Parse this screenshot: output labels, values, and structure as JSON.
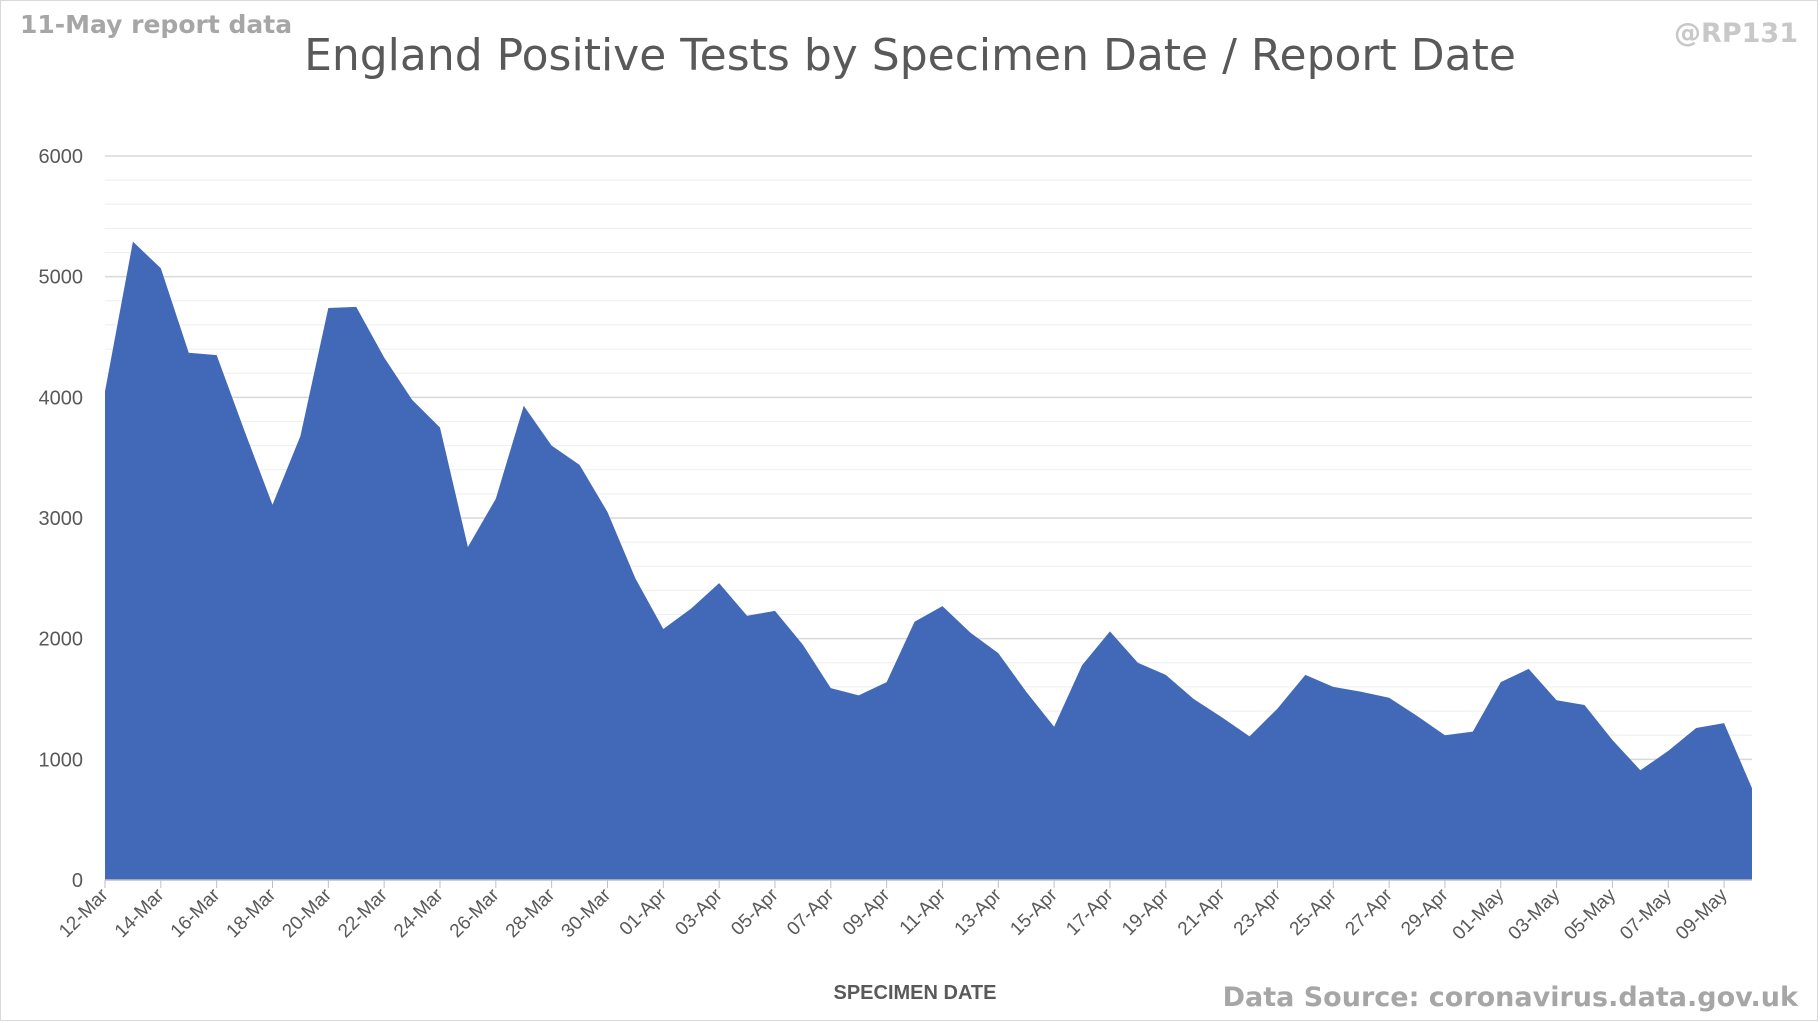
{
  "header": {
    "report_note": "11-May report data",
    "handle": "@RP131",
    "source": "Data Source: coronavirus.data.gov.uk"
  },
  "colors": {
    "area": "#4169b8",
    "major_grid": "#d9d9d9",
    "minor_grid": "#eeeeee"
  },
  "chart_data": {
    "type": "area",
    "title": "England Positive Tests by Specimen Date / Report Date",
    "xlabel": "SPECIMEN DATE",
    "ylabel": "",
    "ylim": [
      0,
      6000
    ],
    "yticks": [
      0,
      1000,
      2000,
      3000,
      4000,
      5000,
      6000
    ],
    "grid": "major and minor horizontal",
    "legend": "none",
    "x": [
      "12-Mar",
      "13-Mar",
      "14-Mar",
      "15-Mar",
      "16-Mar",
      "17-Mar",
      "18-Mar",
      "19-Mar",
      "20-Mar",
      "21-Mar",
      "22-Mar",
      "23-Mar",
      "24-Mar",
      "25-Mar",
      "26-Mar",
      "27-Mar",
      "28-Mar",
      "29-Mar",
      "30-Mar",
      "31-Mar",
      "01-Apr",
      "02-Apr",
      "03-Apr",
      "04-Apr",
      "05-Apr",
      "06-Apr",
      "07-Apr",
      "08-Apr",
      "09-Apr",
      "10-Apr",
      "11-Apr",
      "12-Apr",
      "13-Apr",
      "14-Apr",
      "15-Apr",
      "16-Apr",
      "17-Apr",
      "18-Apr",
      "19-Apr",
      "20-Apr",
      "21-Apr",
      "22-Apr",
      "23-Apr",
      "24-Apr",
      "25-Apr",
      "26-Apr",
      "27-Apr",
      "28-Apr",
      "29-Apr",
      "30-Apr",
      "01-May",
      "02-May",
      "03-May",
      "04-May",
      "05-May",
      "06-May",
      "07-May",
      "08-May",
      "09-May",
      "10-May"
    ],
    "x_tick_labels": [
      "12-Mar",
      "14-Mar",
      "16-Mar",
      "18-Mar",
      "20-Mar",
      "22-Mar",
      "24-Mar",
      "26-Mar",
      "28-Mar",
      "30-Mar",
      "01-Apr",
      "03-Apr",
      "05-Apr",
      "07-Apr",
      "09-Apr",
      "11-Apr",
      "13-Apr",
      "15-Apr",
      "17-Apr",
      "19-Apr",
      "21-Apr",
      "23-Apr",
      "25-Apr",
      "27-Apr",
      "29-Apr",
      "01-May",
      "03-May",
      "05-May",
      "07-May",
      "09-May"
    ],
    "series": [
      {
        "values": [
          4050,
          5290,
          5070,
          4370,
          4350,
          3720,
          3110,
          3680,
          4740,
          4750,
          4330,
          3980,
          3750,
          2760,
          3160,
          3930,
          3600,
          3440,
          3050,
          2500,
          2080,
          2250,
          2460,
          2190,
          2230,
          1950,
          1590,
          1530,
          1640,
          2140,
          2270,
          2050,
          1880,
          1560,
          1270,
          1780,
          2060,
          1800,
          1700,
          1500,
          1350,
          1190,
          1420,
          1700,
          1600,
          1560,
          1510,
          1360,
          1200,
          1230,
          1640,
          1750,
          1490,
          1450,
          1160,
          910,
          1070,
          1260,
          1300,
          760
        ]
      }
    ]
  }
}
